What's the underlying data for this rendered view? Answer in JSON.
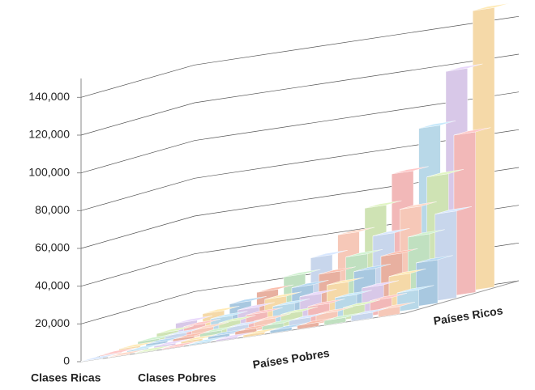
{
  "chart_data": {
    "type": "bar3d",
    "country_labels": [
      "Países Pobres",
      "Países Ricos"
    ],
    "class_labels": [
      "Clases Ricas",
      "Clases Pobres"
    ],
    "values": [
      [
        200,
        300,
        400,
        500,
        700,
        900,
        1200,
        1500,
        2000,
        2500,
        3000,
        4000
      ],
      [
        500,
        700,
        1000,
        1300,
        1800,
        2500,
        3200,
        4000,
        5000,
        6500,
        8000,
        10000
      ],
      [
        1000,
        1500,
        2000,
        2800,
        3800,
        5000,
        6500,
        8500,
        11000,
        14000,
        18000,
        23000
      ],
      [
        2000,
        3000,
        4000,
        5500,
        7500,
        10000,
        13000,
        17000,
        22000,
        28000,
        36000,
        46000
      ],
      [
        3500,
        5000,
        7000,
        9500,
        13000,
        17000,
        22000,
        29000,
        38000,
        50000,
        65000,
        85000
      ],
      [
        6000,
        9000,
        12000,
        16000,
        22000,
        30000,
        40000,
        52000,
        68000,
        90000,
        118000,
        148000
      ]
    ],
    "colors": [
      "#c8d6ec",
      "#f6c8b8",
      "#cfe3b4",
      "#f2b8b8",
      "#b8d8e8",
      "#d8c8e8",
      "#f5d9a8",
      "#a8c8e0",
      "#e8b0a0",
      "#c0e0c0"
    ],
    "ylim": [
      0,
      150000
    ],
    "yticks": [
      0,
      {
        "value": 20000,
        "label": "20,000"
      },
      {
        "value": 40000,
        "label": "40,000"
      },
      {
        "value": 60000,
        "label": "60,000"
      },
      {
        "value": 80000,
        "label": "80,000"
      },
      {
        "value": 100000,
        "label": "100,000"
      },
      {
        "value": 120000,
        "label": "120,000"
      },
      {
        "value": 140000,
        "label": "140,000"
      }
    ],
    "grid": true
  }
}
